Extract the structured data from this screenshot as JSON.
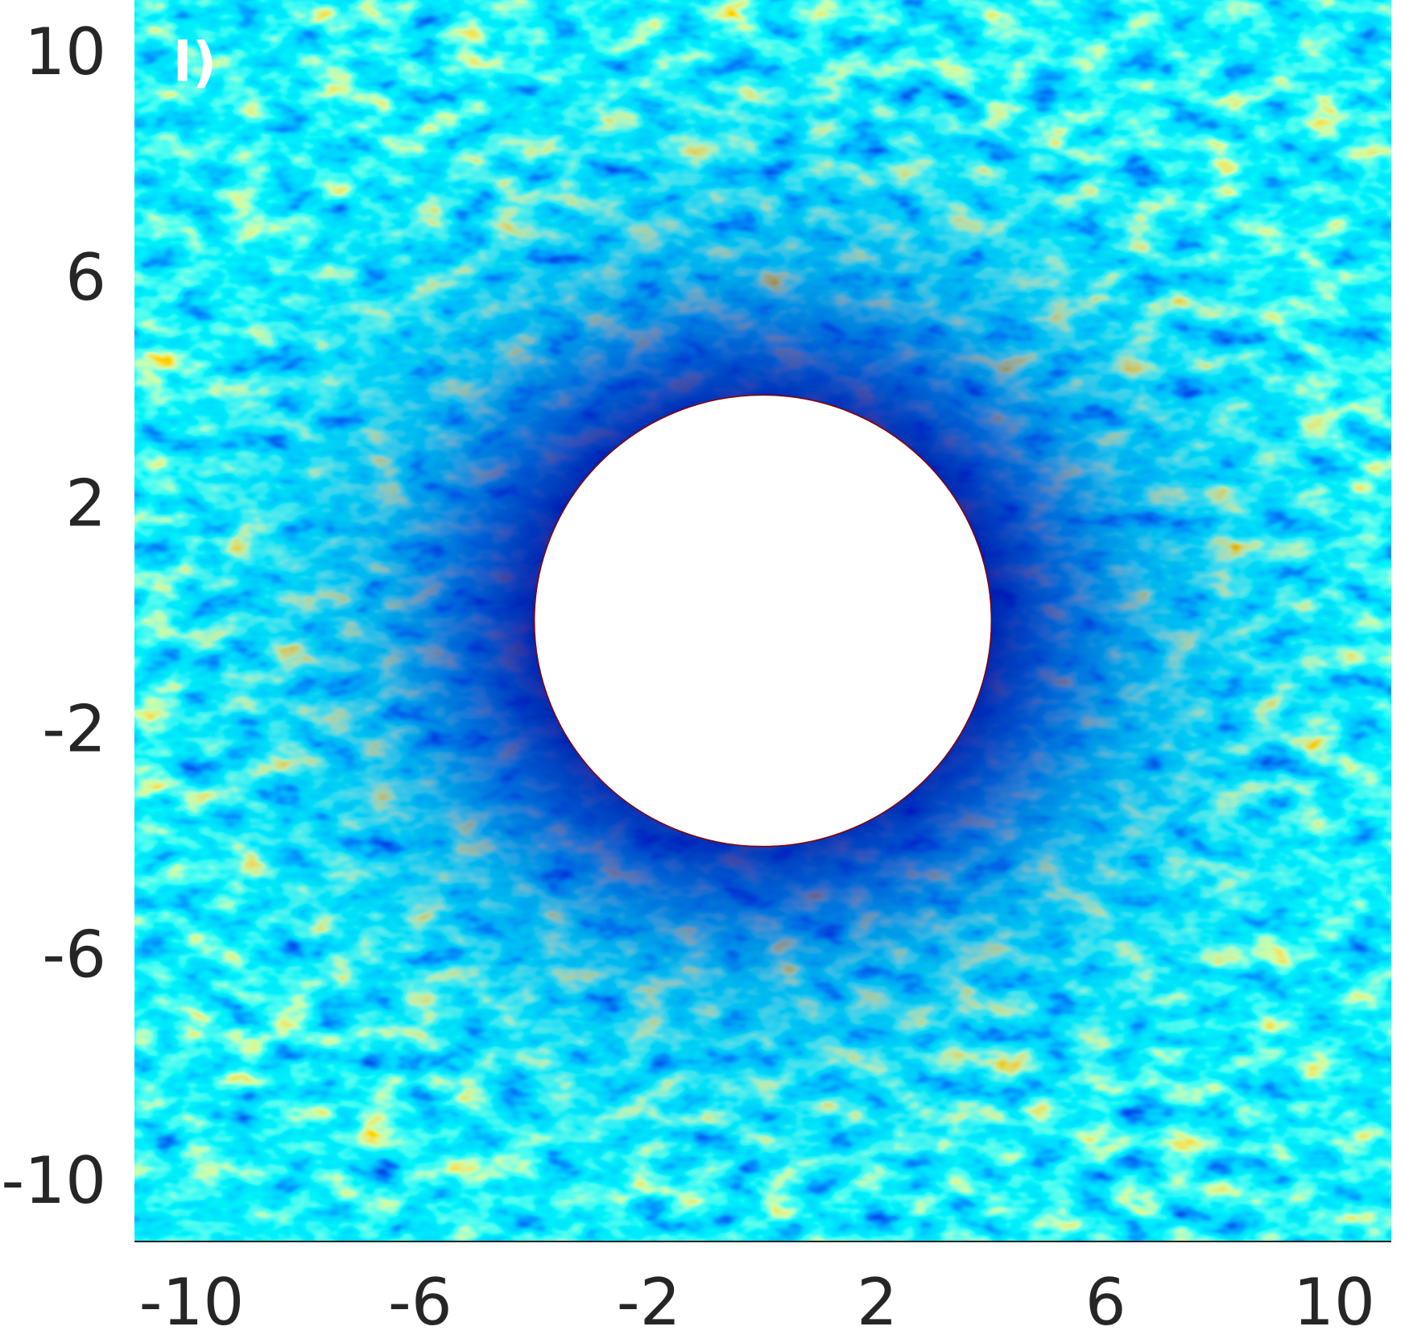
{
  "chart_data": {
    "type": "contour",
    "panel_label": "l)",
    "xlim": [
      -11,
      11
    ],
    "ylim": [
      -11,
      11
    ],
    "xticks": [
      -10,
      -6,
      -2,
      2,
      6,
      10
    ],
    "yticks": [
      -10,
      -6,
      -2,
      2,
      6,
      10
    ],
    "inner_radius": 4
  }
}
